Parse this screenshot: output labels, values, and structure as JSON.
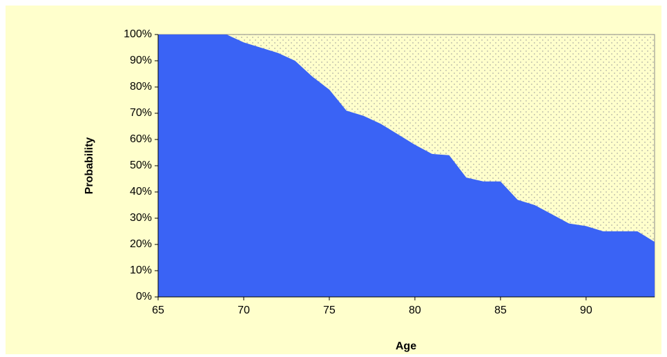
{
  "chart_data": {
    "type": "area",
    "x": [
      65,
      66,
      67,
      68,
      69,
      70,
      71,
      72,
      73,
      74,
      75,
      76,
      77,
      78,
      79,
      80,
      81,
      82,
      83,
      84,
      85,
      86,
      87,
      88,
      89,
      90,
      91,
      92,
      93,
      94
    ],
    "values": [
      100,
      100,
      100,
      100,
      100,
      97,
      95,
      93,
      90,
      84,
      79,
      71,
      69,
      66,
      62,
      58,
      54.5,
      54,
      45.5,
      44,
      44,
      37,
      35,
      31.5,
      28,
      27,
      25,
      25,
      25,
      21
    ],
    "color": "#3a63f5",
    "xlabel": "Age",
    "ylabel": "Probability",
    "xlim": [
      65,
      94
    ],
    "xticks": [
      65,
      70,
      75,
      80,
      85,
      90
    ],
    "ylim": [
      0,
      100
    ],
    "yticks": [
      {
        "value": 0,
        "label": "0%"
      },
      {
        "value": 10,
        "label": "10%"
      },
      {
        "value": 20,
        "label": "20%"
      },
      {
        "value": 30,
        "label": "30%"
      },
      {
        "value": 40,
        "label": "40%"
      },
      {
        "value": 50,
        "label": "50%"
      },
      {
        "value": 60,
        "label": "60%"
      },
      {
        "value": 70,
        "label": "70%"
      },
      {
        "value": 80,
        "label": "80%"
      },
      {
        "value": 90,
        "label": "90%"
      },
      {
        "value": 100,
        "label": "100%"
      }
    ]
  }
}
